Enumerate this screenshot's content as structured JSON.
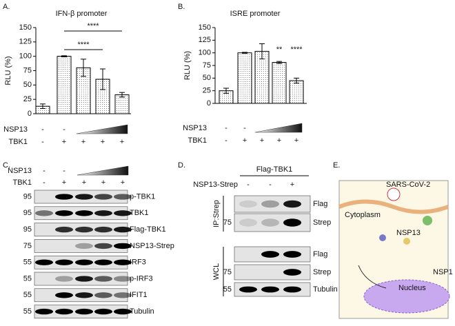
{
  "chart_data": [
    {
      "type": "bar",
      "panel": "A.",
      "title": "IFN-β promoter",
      "y_label": "RLU (%)",
      "categories": [
        null,
        null,
        null,
        null,
        null
      ],
      "values": [
        13,
        100,
        80,
        60,
        33
      ],
      "errors": [
        4,
        1,
        15,
        18,
        4
      ],
      "ylim": [
        0,
        150
      ],
      "yticks": [
        0,
        25,
        50,
        75,
        100,
        125,
        150
      ],
      "annotations": [
        "****",
        "****"
      ],
      "conditions": [
        {
          "name": "NSP13",
          "labels": [
            "-",
            "-",
            null,
            null,
            null
          ]
        },
        {
          "name": "TBK1",
          "labels": [
            "-",
            "+",
            "+",
            "+",
            "+"
          ]
        }
      ]
    },
    {
      "type": "bar",
      "panel": "B.",
      "title": "ISRE promoter",
      "y_label": "RLU (%)",
      "categories": [
        null,
        null,
        null,
        null,
        null
      ],
      "values": [
        25,
        100,
        103,
        81,
        45
      ],
      "errors": [
        5,
        1,
        15,
        2,
        5
      ],
      "ylim": [
        0,
        150
      ],
      "yticks": [
        0,
        25,
        50,
        75,
        100,
        125,
        150
      ],
      "annotations": [
        "**",
        "****"
      ],
      "conditions": [
        {
          "name": "NSP13",
          "labels": [
            "-",
            "-",
            null,
            null,
            null
          ]
        },
        {
          "name": "TBK1",
          "labels": [
            "-",
            "+",
            "+",
            "+",
            "+"
          ]
        }
      ]
    }
  ],
  "blot_c": {
    "panel": "C.",
    "conditions": [
      {
        "name": "NSP13",
        "labels": [
          "-",
          "-",
          null,
          null,
          null
        ]
      },
      {
        "name": "TBK1",
        "labels": [
          "-",
          "+",
          "+",
          "+",
          "+"
        ]
      }
    ],
    "rows": [
      {
        "marker": "95",
        "label": "p-TBK1"
      },
      {
        "marker": "95",
        "label": "TBK1"
      },
      {
        "marker": "95",
        "label": "Flag-TBK1"
      },
      {
        "marker": "75",
        "label": "NSP13-Strep"
      },
      {
        "marker": "55",
        "label": "IRF3"
      },
      {
        "marker": "55",
        "label": "p-IRF3"
      },
      {
        "marker": "55",
        "label": "IFIT1"
      },
      {
        "marker": "55",
        "label": "Tubulin"
      }
    ]
  },
  "blot_d": {
    "panel": "D.",
    "header": "Flag-TBK1",
    "condition": {
      "name": "NSP13-Strep",
      "labels": [
        "-",
        "-",
        "+"
      ]
    },
    "groups": [
      {
        "name": "IP:Strep",
        "rows": [
          {
            "label": "Flag"
          },
          {
            "marker": "75",
            "label": "Strep"
          }
        ]
      },
      {
        "name": "WCL",
        "rows": [
          {
            "label": "Flag"
          },
          {
            "marker": "75",
            "label": "Strep"
          },
          {
            "marker": "55",
            "label": "Tubulin"
          }
        ]
      }
    ]
  },
  "diagram_e": {
    "panel": "E.",
    "labels": [
      "SARS-CoV-2",
      "Cytoplasm",
      "NSP13",
      "Nucleus",
      "NSP1"
    ]
  }
}
